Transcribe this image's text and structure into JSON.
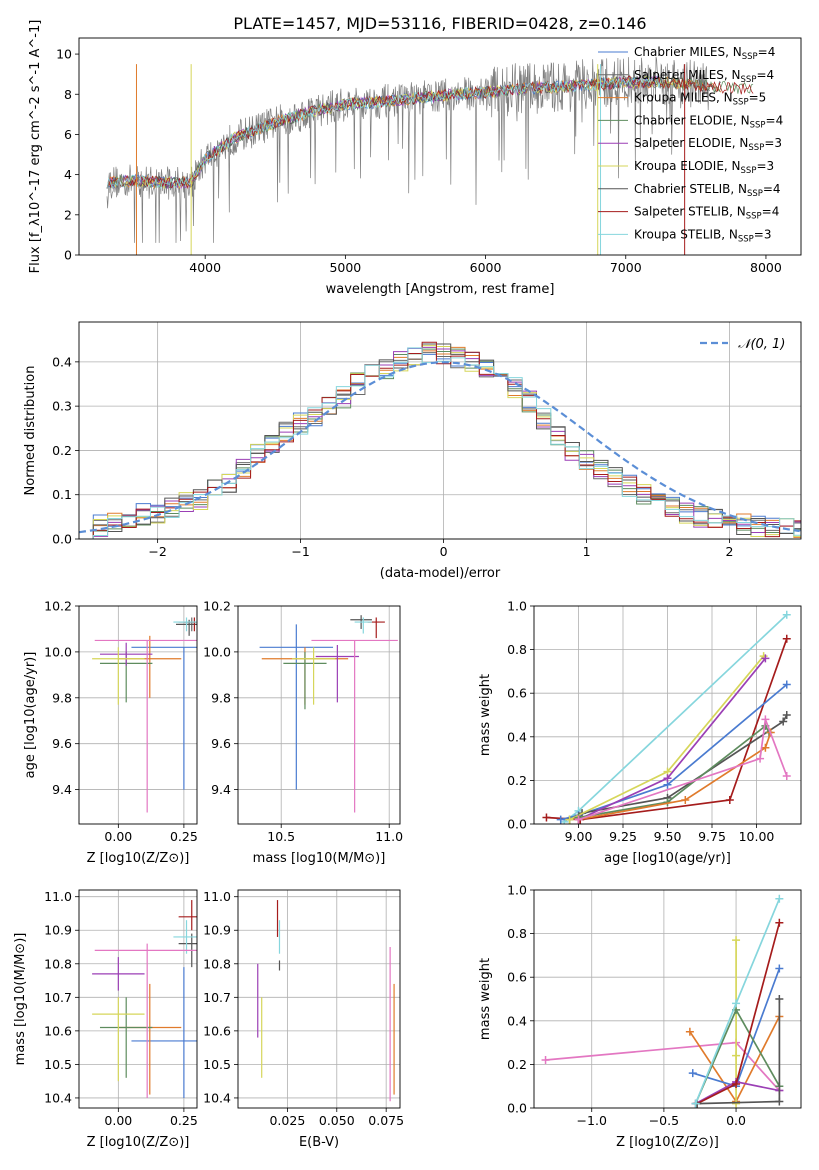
{
  "figure": {
    "title": "PLATE=1457, MJD=53116, FIBERID=0428, z=0.146"
  },
  "colors": {
    "Chabrier MILES": "#4a7bd0",
    "Salpeter MILES": "#6b6b6b",
    "Kroupa MILES": "#e07b2c",
    "Chabrier ELODIE": "#5e8c5e",
    "Salpeter ELODIE": "#9b3fb5",
    "Kroupa ELODIE": "#d6d65a",
    "Chabrier STELIB": "#555555",
    "Salpeter STELIB": "#a51c1c",
    "Kroupa STELIB": "#86d6dd",
    "pink": "#e377c2",
    "normal": "#5b8ed6"
  },
  "chart_data": [
    {
      "id": "spectrum",
      "type": "line",
      "xlabel": "wavelength [Angstrom, rest frame]",
      "ylabel": "Flux [f_λ10^-17 erg cm^-2 s^-1 A^-1]",
      "xlim": [
        3100,
        8250
      ],
      "ylim": [
        0,
        10.8
      ],
      "xticks": [
        4000,
        5000,
        6000,
        7000,
        8000
      ],
      "yticks": [
        0,
        2,
        4,
        6,
        8,
        10
      ],
      "grid": false,
      "legend_position": "top-right",
      "legend": [
        {
          "name": "Chabrier MILES, N",
          "sub": "SSP",
          "tail": "=4"
        },
        {
          "name": "Salpeter MILES, N",
          "sub": "SSP",
          "tail": "=4"
        },
        {
          "name": "Kroupa MILES, N",
          "sub": "SSP",
          "tail": "=5"
        },
        {
          "name": "Chabrier ELODIE, N",
          "sub": "SSP",
          "tail": "=4"
        },
        {
          "name": "Salpeter ELODIE, N",
          "sub": "SSP",
          "tail": "=3"
        },
        {
          "name": "Kroupa ELODIE, N",
          "sub": "SSP",
          "tail": "=3"
        },
        {
          "name": "Chabrier STELIB, N",
          "sub": "SSP",
          "tail": "=4"
        },
        {
          "name": "Salpeter STELIB, N",
          "sub": "SSP",
          "tail": "=4"
        },
        {
          "name": "Kroupa STELIB, N",
          "sub": "SSP",
          "tail": "=3"
        }
      ],
      "model_continuum": {
        "x": [
          3300,
          3500,
          3700,
          3900,
          4000,
          4200,
          4500,
          4800,
          5000,
          5200,
          5500,
          5800,
          6000,
          6300,
          6600,
          7000,
          7300,
          7600,
          8000
        ],
        "y": [
          3.6,
          3.7,
          3.6,
          3.6,
          4.8,
          5.8,
          6.6,
          7.2,
          7.5,
          7.6,
          7.8,
          8.0,
          8.1,
          8.3,
          8.4,
          8.6,
          8.6,
          8.4,
          8.2
        ]
      }
    },
    {
      "id": "residuals",
      "type": "step",
      "xlabel": "(data-model)/error",
      "ylabel": "Normed distribution",
      "xlim": [
        -2.55,
        2.5
      ],
      "ylim": [
        0,
        0.49
      ],
      "xticks": [
        -2,
        -1,
        0,
        1,
        2
      ],
      "yticks": [
        0.0,
        0.1,
        0.2,
        0.3,
        0.4
      ],
      "grid": true,
      "legend_position": "top-right",
      "legend": [
        {
          "name": "𝒩(0, 1)"
        }
      ],
      "bin_width": 0.1,
      "bins_x": [
        -2.55,
        -2.45,
        -2.35,
        -2.25,
        -2.15,
        -2.05,
        -1.95,
        -1.85,
        -1.75,
        -1.65,
        -1.55,
        -1.45,
        -1.35,
        -1.25,
        -1.15,
        -1.05,
        -0.95,
        -0.85,
        -0.75,
        -0.65,
        -0.55,
        -0.45,
        -0.35,
        -0.25,
        -0.15,
        -0.05,
        0.05,
        0.15,
        0.25,
        0.35,
        0.45,
        0.55,
        0.65,
        0.75,
        0.85,
        0.95,
        1.05,
        1.15,
        1.25,
        1.35,
        1.45,
        1.55,
        1.65,
        1.75,
        1.85,
        1.95,
        2.05,
        2.15,
        2.25,
        2.35,
        2.45
      ],
      "series_mean": [
        0.02,
        0.03,
        0.04,
        0.05,
        0.055,
        0.06,
        0.07,
        0.08,
        0.09,
        0.11,
        0.13,
        0.16,
        0.19,
        0.22,
        0.24,
        0.26,
        0.28,
        0.3,
        0.32,
        0.35,
        0.37,
        0.38,
        0.4,
        0.41,
        0.42,
        0.42,
        0.41,
        0.4,
        0.39,
        0.37,
        0.34,
        0.31,
        0.27,
        0.23,
        0.2,
        0.18,
        0.16,
        0.14,
        0.12,
        0.1,
        0.08,
        0.07,
        0.06,
        0.05,
        0.045,
        0.04,
        0.035,
        0.03,
        0.03,
        0.025,
        0.02
      ],
      "normal_curve": {
        "name": "𝒩(0, 1)",
        "mu": 0,
        "sigma": 1
      }
    },
    {
      "id": "age-vs-Z",
      "type": "errorbar",
      "xlabel": "Z [log10(Z/Z⊙)]",
      "ylabel": "age [log10(age/yr)]",
      "xlim": [
        -0.15,
        0.3
      ],
      "ylim": [
        9.25,
        10.2
      ],
      "xticks": [
        0.0,
        0.25
      ],
      "xticklabels": [
        "0.00",
        "0.25"
      ],
      "yticks": [
        9.4,
        9.6,
        9.8,
        10.0,
        10.2
      ],
      "grid": true,
      "points": [
        {
          "series": "Chabrier MILES",
          "x": 0.25,
          "y": 10.02,
          "xerr": 0.2,
          "yerr_lo": 0.62,
          "yerr_hi": 0.0
        },
        {
          "series": "Salpeter MILES",
          "x": 0.28,
          "y": 10.13,
          "xerr": 0.05,
          "yerr_lo": 0.04,
          "yerr_hi": 0.02
        },
        {
          "series": "Kroupa MILES",
          "x": 0.12,
          "y": 9.97,
          "xerr": 0.12,
          "yerr_lo": 0.17,
          "yerr_hi": 0.1
        },
        {
          "series": "Chabrier ELODIE",
          "x": 0.03,
          "y": 9.95,
          "xerr": 0.1,
          "yerr_lo": 0.17,
          "yerr_hi": 0.05
        },
        {
          "series": "Salpeter ELODIE",
          "x": 0.03,
          "y": 9.99,
          "xerr": 0.1,
          "yerr_lo": 0.05,
          "yerr_hi": 0.05
        },
        {
          "series": "Kroupa ELODIE",
          "x": 0.0,
          "y": 9.97,
          "xerr": 0.1,
          "yerr_lo": 0.2,
          "yerr_hi": 0.05
        },
        {
          "series": "Chabrier STELIB",
          "x": 0.27,
          "y": 10.12,
          "xerr": 0.05,
          "yerr_lo": 0.05,
          "yerr_hi": 0.02
        },
        {
          "series": "Salpeter STELIB",
          "x": 0.29,
          "y": 10.13,
          "xerr": 0.04,
          "yerr_lo": 0.04,
          "yerr_hi": 0.02
        },
        {
          "series": "Kroupa STELIB",
          "x": 0.26,
          "y": 10.13,
          "xerr": 0.05,
          "yerr_lo": 0.04,
          "yerr_hi": 0.02
        },
        {
          "series": "pink",
          "x": 0.11,
          "y": 10.05,
          "xerr": 0.2,
          "yerr_lo": 0.75,
          "yerr_hi": 0.0
        }
      ]
    },
    {
      "id": "age-vs-mass",
      "type": "errorbar",
      "xlabel": "mass [log10(M/M⊙)]",
      "ylabel": "",
      "xlim": [
        10.3,
        11.05
      ],
      "ylim": [
        9.25,
        10.2
      ],
      "xticks": [
        10.5,
        11.0
      ],
      "xticklabels": [
        "10.5",
        "11.0"
      ],
      "yticks": [
        9.4,
        9.6,
        9.8,
        10.0,
        10.2
      ],
      "grid": true,
      "points": [
        {
          "series": "Chabrier MILES",
          "x": 10.57,
          "y": 10.02,
          "xerr": 0.17,
          "yerr_lo": 0.62,
          "yerr_hi": 0.1
        },
        {
          "series": "Kroupa MILES",
          "x": 10.61,
          "y": 9.97,
          "xerr": 0.2,
          "yerr_lo": 0.2,
          "yerr_hi": 0.05
        },
        {
          "series": "Chabrier ELODIE",
          "x": 10.61,
          "y": 9.95,
          "xerr": 0.1,
          "yerr_lo": 0.2,
          "yerr_hi": 0.05
        },
        {
          "series": "Salpeter ELODIE",
          "x": 10.76,
          "y": 9.98,
          "xerr": 0.1,
          "yerr_lo": 0.2,
          "yerr_hi": 0.05
        },
        {
          "series": "Kroupa ELODIE",
          "x": 10.65,
          "y": 9.97,
          "xerr": 0.1,
          "yerr_lo": 0.2,
          "yerr_hi": 0.05
        },
        {
          "series": "Chabrier STELIB",
          "x": 10.87,
          "y": 10.14,
          "xerr": 0.05,
          "yerr_lo": 0.04,
          "yerr_hi": 0.02
        },
        {
          "series": "Salpeter STELIB",
          "x": 10.94,
          "y": 10.13,
          "xerr": 0.04,
          "yerr_lo": 0.07,
          "yerr_hi": 0.02
        },
        {
          "series": "Kroupa STELIB",
          "x": 10.88,
          "y": 10.13,
          "xerr": 0.04,
          "yerr_lo": 0.05,
          "yerr_hi": 0.02
        },
        {
          "series": "pink",
          "x": 10.84,
          "y": 10.05,
          "xerr": 0.2,
          "yerr_lo": 0.75,
          "yerr_hi": 0.0
        }
      ]
    },
    {
      "id": "massweight-vs-age",
      "type": "line",
      "xlabel": "age [log10(age/yr)]",
      "ylabel": "mass weight",
      "xlim": [
        8.75,
        10.25
      ],
      "ylim": [
        0,
        1.0
      ],
      "xticks": [
        9.0,
        9.25,
        9.5,
        9.75,
        10.0
      ],
      "xticklabels": [
        "9.00",
        "9.25",
        "9.50",
        "9.75",
        "10.00"
      ],
      "yticks": [
        0.0,
        0.2,
        0.4,
        0.6,
        0.8,
        1.0
      ],
      "grid": true,
      "series": [
        {
          "name": "Kroupa STELIB",
          "x": [
            8.92,
            9.0,
            10.17
          ],
          "y": [
            0.01,
            0.06,
            0.96
          ]
        },
        {
          "name": "Salpeter STELIB",
          "x": [
            8.82,
            9.01,
            9.85,
            10.17
          ],
          "y": [
            0.03,
            0.02,
            0.11,
            0.85
          ]
        },
        {
          "name": "Chabrier MILES",
          "x": [
            8.9,
            9.0,
            9.5,
            10.17
          ],
          "y": [
            0.02,
            0.04,
            0.18,
            0.64
          ]
        },
        {
          "name": "Chabrier STELIB",
          "x": [
            8.95,
            9.02,
            9.5,
            10.15,
            10.17
          ],
          "y": [
            0.02,
            0.05,
            0.12,
            0.47,
            0.5
          ]
        },
        {
          "name": "Kroupa ELODIE",
          "x": [
            8.95,
            9.5,
            10.04
          ],
          "y": [
            0.02,
            0.24,
            0.77
          ]
        },
        {
          "name": "Salpeter ELODIE",
          "x": [
            9.0,
            9.5,
            10.05
          ],
          "y": [
            0.02,
            0.21,
            0.76
          ]
        },
        {
          "name": "Chabrier ELODIE",
          "x": [
            9.0,
            9.5,
            10.05,
            10.07
          ],
          "y": [
            0.03,
            0.1,
            0.45,
            0.42
          ]
        },
        {
          "name": "Kroupa MILES",
          "x": [
            9.0,
            9.6,
            10.05,
            10.08
          ],
          "y": [
            0.02,
            0.11,
            0.35,
            0.42
          ]
        },
        {
          "name": "pink",
          "x": [
            9.0,
            10.02,
            10.05,
            10.17
          ],
          "y": [
            0.02,
            0.3,
            0.48,
            0.22
          ]
        }
      ]
    },
    {
      "id": "mass-vs-Z",
      "type": "errorbar",
      "xlabel": "Z [log10(Z/Z⊙)]",
      "ylabel": "mass [log10(M/M⊙)]",
      "xlim": [
        -0.15,
        0.3
      ],
      "ylim": [
        10.37,
        11.02
      ],
      "xticks": [
        0.0,
        0.25
      ],
      "xticklabels": [
        "0.00",
        "0.25"
      ],
      "yticks": [
        10.4,
        10.5,
        10.6,
        10.7,
        10.8,
        10.9,
        11.0
      ],
      "grid": true,
      "points": [
        {
          "series": "Chabrier MILES",
          "x": 0.25,
          "y": 10.57,
          "xerr": 0.2,
          "yerr_lo": 0.17,
          "yerr_hi": 0.22
        },
        {
          "series": "Kroupa MILES",
          "x": 0.12,
          "y": 10.61,
          "xerr": 0.12,
          "yerr_lo": 0.2,
          "yerr_hi": 0.13
        },
        {
          "series": "Chabrier ELODIE",
          "x": 0.03,
          "y": 10.61,
          "xerr": 0.1,
          "yerr_lo": 0.15,
          "yerr_hi": 0.09
        },
        {
          "series": "Salpeter ELODIE",
          "x": 0.0,
          "y": 10.77,
          "xerr": 0.1,
          "yerr_lo": 0.05,
          "yerr_hi": 0.05
        },
        {
          "series": "Kroupa ELODIE",
          "x": 0.0,
          "y": 10.65,
          "xerr": 0.1,
          "yerr_lo": 0.2,
          "yerr_hi": 0.05
        },
        {
          "series": "Chabrier STELIB",
          "x": 0.28,
          "y": 10.86,
          "xerr": 0.05,
          "yerr_lo": 0.07,
          "yerr_hi": 0.03
        },
        {
          "series": "Salpeter STELIB",
          "x": 0.28,
          "y": 10.94,
          "xerr": 0.05,
          "yerr_lo": 0.04,
          "yerr_hi": 0.05
        },
        {
          "series": "Kroupa STELIB",
          "x": 0.26,
          "y": 10.88,
          "xerr": 0.05,
          "yerr_lo": 0.05,
          "yerr_hi": 0.05
        },
        {
          "series": "pink",
          "x": 0.11,
          "y": 10.84,
          "xerr": 0.2,
          "yerr_lo": 0.44,
          "yerr_hi": 0.02
        }
      ]
    },
    {
      "id": "mass-vs-EBV",
      "type": "errorbar",
      "xlabel": "E(B-V)",
      "ylabel": "",
      "xlim": [
        0.0,
        0.082
      ],
      "ylim": [
        10.37,
        11.02
      ],
      "xticks": [
        0.025,
        0.05,
        0.075
      ],
      "xticklabels": [
        "0.025",
        "0.050",
        "0.075"
      ],
      "yticks": [
        10.4,
        10.5,
        10.6,
        10.7,
        10.8,
        10.9,
        11.0
      ],
      "grid": true,
      "points": [
        {
          "series": "Salpeter ELODIE",
          "x": 0.01,
          "y": 10.7,
          "xerr": 0.0,
          "yerr_lo": 0.12,
          "yerr_hi": 0.1
        },
        {
          "series": "Kroupa ELODIE",
          "x": 0.012,
          "y": 10.6,
          "xerr": 0.0,
          "yerr_lo": 0.14,
          "yerr_hi": 0.1
        },
        {
          "series": "Salpeter STELIB",
          "x": 0.02,
          "y": 10.93,
          "xerr": 0.0,
          "yerr_lo": 0.05,
          "yerr_hi": 0.06
        },
        {
          "series": "Kroupa STELIB",
          "x": 0.021,
          "y": 10.88,
          "xerr": 0.0,
          "yerr_lo": 0.05,
          "yerr_hi": 0.05
        },
        {
          "series": "Chabrier STELIB",
          "x": 0.021,
          "y": 10.79,
          "xerr": 0.0,
          "yerr_lo": 0.01,
          "yerr_hi": 0.02
        },
        {
          "series": "pink",
          "x": 0.077,
          "y": 10.62,
          "xerr": 0.0,
          "yerr_lo": 0.23,
          "yerr_hi": 0.23
        },
        {
          "series": "Kroupa MILES",
          "x": 0.079,
          "y": 10.58,
          "xerr": 0.0,
          "yerr_lo": 0.17,
          "yerr_hi": 0.16
        }
      ]
    },
    {
      "id": "massweight-vs-Z",
      "type": "line",
      "xlabel": "Z [log10(Z/Z⊙)]",
      "ylabel": "mass weight",
      "xlim": [
        -1.4,
        0.45
      ],
      "ylim": [
        0,
        1.0
      ],
      "xticks": [
        -1.0,
        -0.5,
        0.0
      ],
      "xticklabels": [
        "−1.0",
        "−0.5",
        "0.0"
      ],
      "yticks": [
        0.0,
        0.2,
        0.4,
        0.6,
        0.8,
        1.0
      ],
      "grid": true,
      "series": [
        {
          "name": "pink",
          "x": [
            -1.32,
            0.0,
            0.3
          ],
          "y": [
            0.22,
            0.3,
            0.08
          ]
        },
        {
          "name": "Kroupa MILES",
          "x": [
            -0.32,
            0.0,
            0.3
          ],
          "y": [
            0.35,
            0.03,
            0.42
          ]
        },
        {
          "name": "Chabrier MILES",
          "x": [
            -0.3,
            0.0,
            0.3
          ],
          "y": [
            0.16,
            0.1,
            0.64
          ]
        },
        {
          "name": "Kroupa ELODIE",
          "x": [
            0.0,
            0.0,
            0.0
          ],
          "y": [
            0.02,
            0.77,
            0.24
          ]
        },
        {
          "name": "Chabrier ELODIE",
          "x": [
            -0.28,
            0.0,
            0.3
          ],
          "y": [
            0.02,
            0.45,
            0.1
          ]
        },
        {
          "name": "Salpeter ELODIE",
          "x": [
            -0.28,
            0.0,
            0.3
          ],
          "y": [
            0.02,
            0.12,
            0.08
          ]
        },
        {
          "name": "Salpeter STELIB",
          "x": [
            -0.27,
            0.0,
            0.3
          ],
          "y": [
            0.02,
            0.11,
            0.85
          ]
        },
        {
          "name": "Chabrier STELIB",
          "x": [
            -0.27,
            0.3,
            0.3
          ],
          "y": [
            0.02,
            0.03,
            0.5
          ]
        },
        {
          "name": "Kroupa STELIB",
          "x": [
            -0.28,
            0.0,
            0.3
          ],
          "y": [
            0.02,
            0.48,
            0.96
          ]
        }
      ]
    }
  ]
}
